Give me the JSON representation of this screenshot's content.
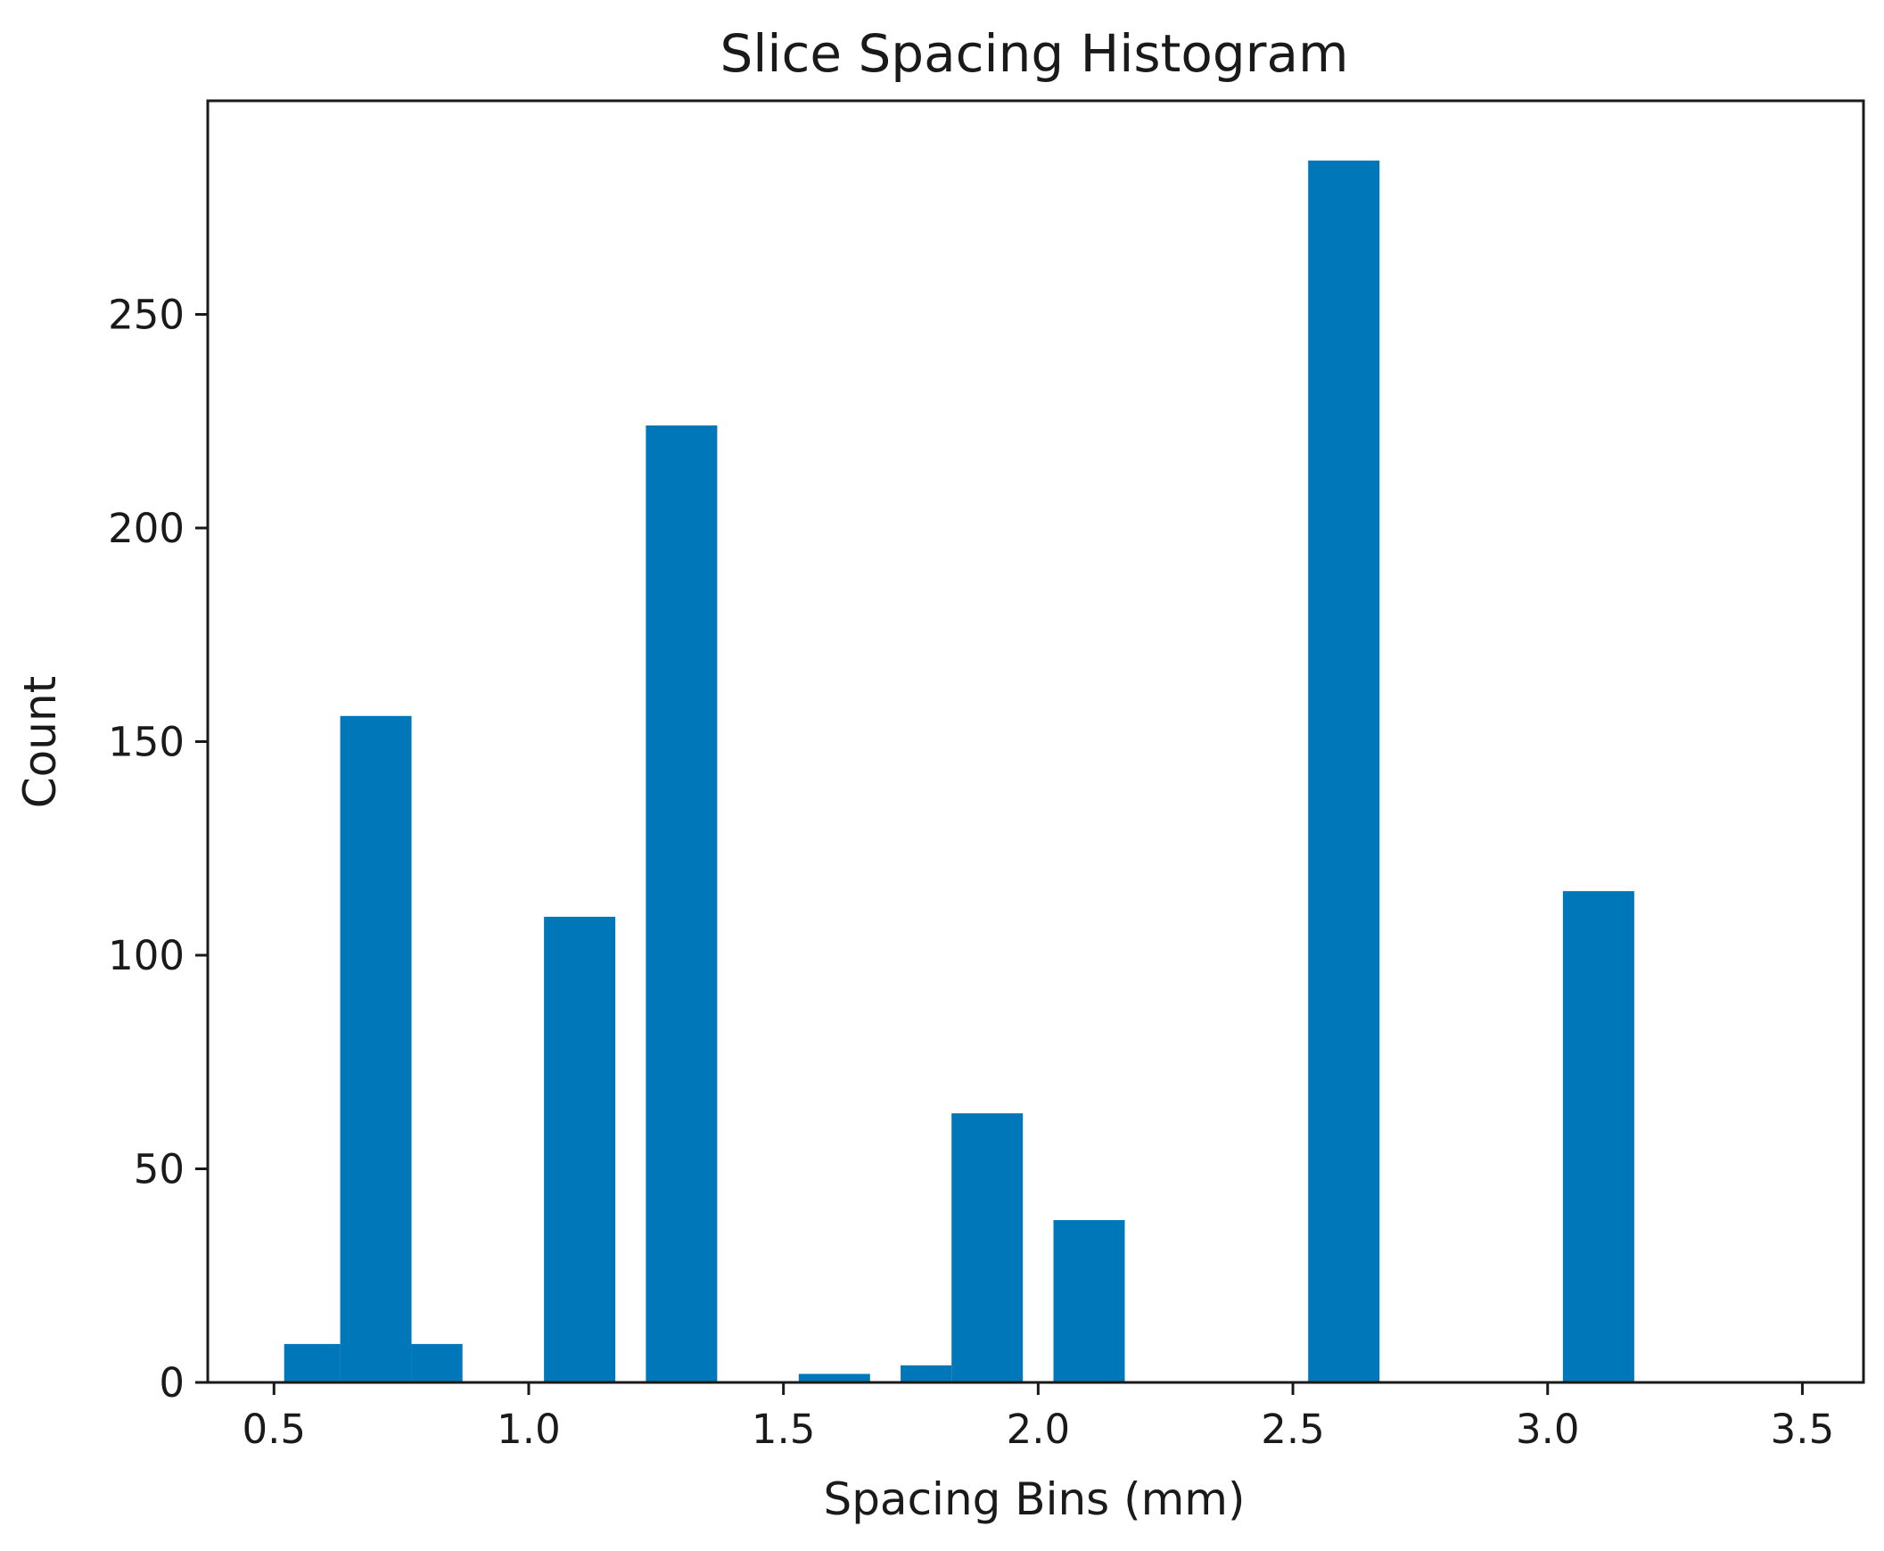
{
  "chart_data": {
    "type": "bar",
    "title": "Slice Spacing Histogram",
    "xlabel": "Spacing Bins (mm)",
    "ylabel": "Count",
    "xlim": [
      0.37,
      3.62
    ],
    "ylim": [
      0,
      300
    ],
    "xticks": [
      "0.5",
      "1.0",
      "1.5",
      "2.0",
      "2.5",
      "3.0",
      "3.5"
    ],
    "yticks": [
      "0",
      "50",
      "100",
      "150",
      "200",
      "250"
    ],
    "bar_color": "#0077b8",
    "bins": [
      {
        "x0": 0.52,
        "x1": 0.63,
        "count": 9
      },
      {
        "x0": 0.63,
        "x1": 0.77,
        "count": 156
      },
      {
        "x0": 0.77,
        "x1": 0.87,
        "count": 9
      },
      {
        "x0": 1.03,
        "x1": 1.17,
        "count": 109
      },
      {
        "x0": 1.23,
        "x1": 1.37,
        "count": 224
      },
      {
        "x0": 1.53,
        "x1": 1.67,
        "count": 2
      },
      {
        "x0": 1.73,
        "x1": 1.83,
        "count": 4
      },
      {
        "x0": 1.83,
        "x1": 1.97,
        "count": 63
      },
      {
        "x0": 2.03,
        "x1": 2.17,
        "count": 38
      },
      {
        "x0": 2.53,
        "x1": 2.67,
        "count": 286
      },
      {
        "x0": 3.03,
        "x1": 3.17,
        "count": 115
      }
    ]
  }
}
